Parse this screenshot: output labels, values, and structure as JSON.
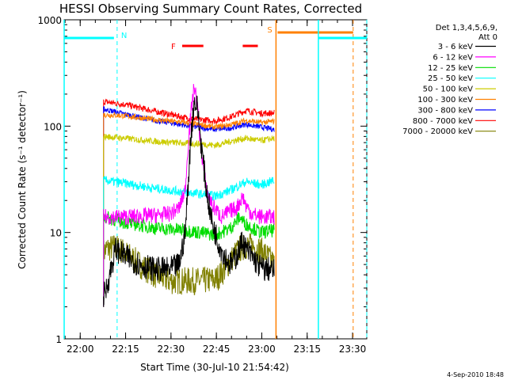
{
  "chart_data": {
    "type": "line",
    "title": "HESSI Observing Summary Count Rates, Corrected",
    "xlabel": "Start Time (30-Jul-10 21:54:42)",
    "ylabel": "Corrected Count Rate (s⁻¹ detector⁻¹)",
    "x_unit": "minutes after 21:54:42 UT (30-Jul-2010)",
    "xlim": [
      0,
      100
    ],
    "ylim": [
      1,
      1000
    ],
    "yscale": "log",
    "x_ticks": [
      {
        "value": 5.3,
        "label": "22:00"
      },
      {
        "value": 20.3,
        "label": "22:15"
      },
      {
        "value": 35.3,
        "label": "22:30"
      },
      {
        "value": 50.3,
        "label": "22:45"
      },
      {
        "value": 65.3,
        "label": "23:00"
      },
      {
        "value": 80.3,
        "label": "23:15"
      },
      {
        "value": 95.3,
        "label": "23:30"
      }
    ],
    "y_ticks": [
      {
        "value": 1,
        "label": "1"
      },
      {
        "value": 10,
        "label": "10"
      },
      {
        "value": 100,
        "label": "100"
      },
      {
        "value": 1000,
        "label": "1000"
      }
    ],
    "legend_header": [
      "Det 1,3,4,5,6,9,",
      "Att 0"
    ],
    "legend_position": "right",
    "series": [
      {
        "name": "3 - 6 keV",
        "color": "#000000",
        "x": [
          13,
          14,
          17,
          20,
          25,
          30,
          35,
          38,
          40,
          41,
          42,
          43,
          44,
          45,
          47,
          49,
          51,
          53,
          55,
          57,
          59,
          60,
          62,
          64,
          66,
          68,
          69.5
        ],
        "y": [
          2.5,
          3,
          7,
          6,
          5,
          4.5,
          4.5,
          5,
          10,
          30,
          90,
          170,
          150,
          80,
          25,
          12,
          8,
          6,
          5,
          6,
          8.5,
          7,
          6,
          5,
          4.5,
          4.5,
          4.3
        ]
      },
      {
        "name": "6 - 12 keV",
        "color": "#ff00ff",
        "x": [
          13,
          20,
          30,
          35,
          38,
          40,
          41,
          42,
          43,
          44,
          45,
          47,
          49,
          52,
          55,
          57,
          59,
          60,
          62,
          65,
          69.5
        ],
        "y": [
          14,
          14,
          14.5,
          15,
          17,
          25,
          70,
          140,
          240,
          160,
          70,
          25,
          18,
          14,
          16,
          17,
          22,
          18,
          15,
          14,
          14
        ]
      },
      {
        "name": "12 - 25 keV",
        "color": "#00dd00",
        "x": [
          13,
          20,
          30,
          40,
          45,
          50,
          55,
          58,
          60,
          65,
          69.5
        ],
        "y": [
          14,
          12.5,
          11,
          10.5,
          10,
          9.5,
          11,
          14,
          12,
          10,
          10.5
        ]
      },
      {
        "name": "25 - 50 keV",
        "color": "#00ffff",
        "x": [
          13,
          20,
          30,
          40,
          45,
          50,
          55,
          60,
          65,
          69.5
        ],
        "y": [
          31,
          29,
          26,
          24,
          23,
          22,
          25,
          30,
          28,
          31
        ]
      },
      {
        "name": "50 - 100 keV",
        "color": "#cccc00",
        "x": [
          13,
          20,
          30,
          40,
          45,
          50,
          55,
          60,
          65,
          69.5
        ],
        "y": [
          80,
          77,
          72,
          69,
          68,
          66,
          72,
          77,
          73,
          77
        ]
      },
      {
        "name": "100 - 300 keV",
        "color": "#ff8000",
        "x": [
          13,
          20,
          30,
          40,
          45,
          50,
          55,
          60,
          65,
          69.5
        ],
        "y": [
          128,
          125,
          115,
          108,
          103,
          98,
          103,
          113,
          108,
          111
        ]
      },
      {
        "name": "300 - 800 keV",
        "color": "#0000ff",
        "x": [
          13,
          20,
          30,
          40,
          45,
          50,
          55,
          60,
          65,
          69.5
        ],
        "y": [
          145,
          130,
          113,
          102,
          97,
          93,
          96,
          104,
          98,
          93
        ]
      },
      {
        "name": "800 - 7000 keV",
        "color": "#ff0000",
        "x": [
          13,
          20,
          30,
          40,
          45,
          50,
          55,
          60,
          65,
          69.5
        ],
        "y": [
          170,
          160,
          138,
          120,
          115,
          112,
          122,
          140,
          132,
          133
        ]
      },
      {
        "name": "7000 - 20000 keV",
        "color": "#808000",
        "x": [
          13,
          14,
          17,
          20,
          25,
          30,
          35,
          40,
          45,
          50,
          53,
          56,
          58,
          60,
          63,
          66,
          69.5
        ],
        "y": [
          6.5,
          7,
          7.3,
          6.5,
          5,
          4,
          3.5,
          3.5,
          3.5,
          3.6,
          4.5,
          6,
          7,
          7.5,
          7.3,
          6.5,
          5
        ]
      }
    ],
    "annotations": [
      {
        "label": "N",
        "color": "#00ffff",
        "x": 17.5
      },
      {
        "label": "S",
        "color": "#ff8000",
        "x": 70
      }
    ],
    "flag_markers": [
      {
        "label": "F",
        "color": "#ff0000",
        "ranges": [
          [
            39,
            46
          ],
          [
            59,
            64
          ]
        ]
      }
    ],
    "footer": "4-Sep-2010 18:48"
  }
}
